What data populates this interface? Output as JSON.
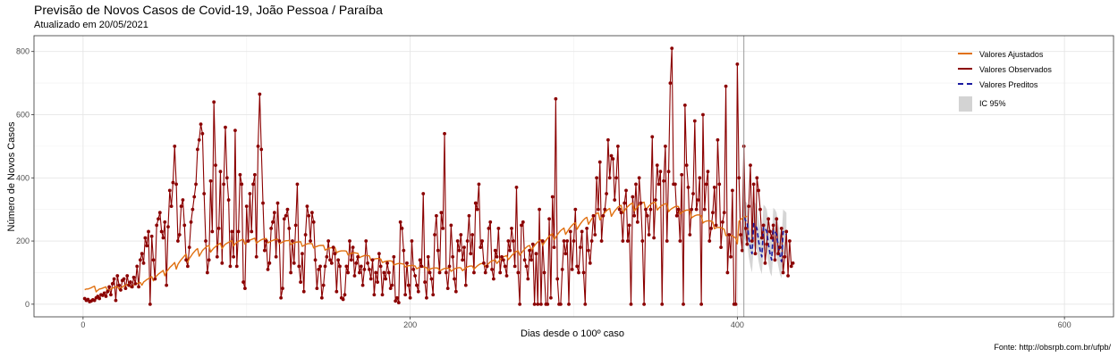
{
  "chart_data": {
    "type": "line",
    "title": "Previsão de Novos Casos de Covid-19, João Pessoa / Paraíba",
    "subtitle": "Atualizado em 20/05/2021",
    "caption": "Fonte: http://obsrpb.com.br/ufpb/",
    "xlabel": "Dias desde o 100º caso",
    "ylabel": "Número de Novos Casos",
    "xlim": [
      -30,
      630
    ],
    "ylim": [
      -40,
      850
    ],
    "x_ticks": [
      0,
      200,
      400,
      600
    ],
    "y_ticks": [
      0,
      200,
      400,
      600,
      800
    ],
    "grid": true,
    "legend_position": "top-right",
    "vline_x": 404,
    "colors": {
      "ajustados": "#e07010",
      "observados": "#8b0000",
      "preditos": "#1a1aa0",
      "ic": "#d3d3d3"
    },
    "legend": [
      "Valores Ajustados",
      "Valores Observados",
      "Valores Preditos",
      "IC 95%"
    ],
    "series": [
      {
        "name": "Valores Observados",
        "x_start": 1,
        "values": [
          18,
          12,
          15,
          8,
          10,
          14,
          12,
          20,
          25,
          18,
          30,
          28,
          35,
          25,
          40,
          55,
          30,
          65,
          80,
          12,
          90,
          60,
          45,
          75,
          80,
          50,
          90,
          60,
          70,
          55,
          85,
          65,
          120,
          55,
          140,
          160,
          130,
          210,
          185,
          230,
          0,
          215,
          140,
          80,
          250,
          270,
          290,
          230,
          210,
          260,
          60,
          245,
          360,
          310,
          385,
          500,
          380,
          200,
          220,
          310,
          330,
          250,
          140,
          120,
          180,
          260,
          300,
          340,
          380,
          490,
          520,
          570,
          540,
          350,
          200,
          100,
          140,
          390,
          230,
          640,
          440,
          150,
          240,
          420,
          130,
          380,
          560,
          400,
          330,
          120,
          230,
          150,
          550,
          120,
          230,
          410,
          380,
          70,
          50,
          310,
          200,
          350,
          230,
          380,
          410,
          150,
          500,
          665,
          490,
          320,
          170,
          200,
          110,
          130,
          240,
          260,
          290,
          150,
          320,
          200,
          20,
          50,
          270,
          280,
          300,
          240,
          100,
          200,
          130,
          250,
          380,
          120,
          70,
          160,
          40,
          220,
          310,
          280,
          200,
          290,
          260,
          140,
          50,
          110,
          120,
          20,
          60,
          120,
          150,
          200,
          140,
          130,
          180,
          160,
          40,
          140,
          120,
          20,
          15,
          30,
          120,
          100,
          200,
          140,
          180,
          90,
          130,
          150,
          100,
          120,
          60,
          110,
          200,
          130,
          110,
          80,
          140,
          30,
          100,
          70,
          160,
          120,
          30,
          100,
          80,
          130,
          100,
          50,
          60,
          150,
          10,
          20,
          5,
          260,
          240,
          170,
          30,
          130,
          60,
          20,
          200,
          110,
          90,
          60,
          40,
          140,
          120,
          350,
          70,
          20,
          150,
          100,
          80,
          30,
          220,
          280,
          170,
          100,
          290,
          240,
          540,
          100,
          50,
          120,
          250,
          150,
          80,
          40,
          200,
          170,
          220,
          140,
          180,
          60,
          200,
          280,
          160,
          220,
          100,
          320,
          300,
          380,
          180,
          200,
          130,
          100,
          120,
          240,
          260,
          110,
          80,
          170,
          150,
          240,
          100,
          150,
          140,
          120,
          90,
          200,
          170,
          240,
          200,
          120,
          370,
          100,
          0,
          250,
          260,
          140,
          120,
          80,
          170,
          140,
          190,
          0,
          160,
          0,
          300,
          0,
          200,
          100,
          0,
          0,
          270,
          20,
          340,
          180,
          650,
          80,
          0,
          0,
          110,
          200,
          160,
          200,
          0,
          230,
          110,
          200,
          300,
          120,
          100,
          180,
          230,
          100,
          0,
          240,
          170,
          130,
          200,
          280,
          220,
          400,
          300,
          450,
          200,
          280,
          300,
          350,
          520,
          400,
          470,
          460,
          330,
          400,
          500,
          300,
          290,
          200,
          320,
          360,
          200,
          250,
          0,
          340,
          280,
          380,
          260,
          400,
          320,
          200,
          0,
          300,
          280,
          220,
          300,
          530,
          210,
          330,
          440,
          380,
          420,
          0,
          390,
          500,
          200,
          420,
          700,
          810,
          380,
          380,
          280,
          300,
          200,
          410,
          0,
          630,
          440,
          370,
          220,
          300,
          350,
          580,
          300,
          330,
          400,
          0,
          600,
          300,
          380,
          420,
          200,
          240,
          290,
          370,
          250,
          520,
          380,
          180,
          260,
          290,
          690,
          100,
          220,
          150,
          360,
          0,
          0,
          760,
          400,
          220,
          170,
          500,
          240,
          190,
          310,
          440,
          200,
          380,
          160,
          400,
          360,
          300,
          210,
          250,
          130,
          190,
          270,
          230,
          210,
          250,
          140,
          270,
          160,
          180,
          240,
          100,
          150,
          230,
          90,
          200,
          120,
          130
        ]
      },
      {
        "name": "Valores Ajustados",
        "x_start": 1,
        "values": [
          46,
          48,
          48,
          50,
          52,
          55,
          57,
          39,
          44,
          48,
          49,
          51,
          53,
          55,
          40,
          44,
          48,
          51,
          53,
          55,
          56,
          47,
          51,
          54,
          58,
          60,
          62,
          64,
          53,
          57,
          61,
          63,
          65,
          67,
          69,
          60,
          70,
          74,
          78,
          81,
          85,
          87,
          74,
          84,
          90,
          95,
          99,
          103,
          107,
          90,
          103,
          109,
          116,
          121,
          126,
          132,
          111,
          126,
          134,
          141,
          147,
          153,
          158,
          133,
          145,
          152,
          160,
          166,
          172,
          176,
          152,
          161,
          170,
          175,
          180,
          184,
          186,
          165,
          172,
          178,
          182,
          187,
          190,
          193,
          176,
          184,
          190,
          193,
          196,
          199,
          201,
          184,
          191,
          196,
          199,
          201,
          204,
          205,
          190,
          195,
          200,
          203,
          205,
          207,
          209,
          193,
          197,
          201,
          204,
          206,
          207,
          208,
          194,
          197,
          200,
          202,
          204,
          205,
          206,
          191,
          194,
          197,
          199,
          201,
          201,
          202,
          189,
          192,
          194,
          196,
          197,
          197,
          198,
          183,
          186,
          189,
          191,
          192,
          192,
          192,
          178,
          181,
          183,
          185,
          186,
          186,
          186,
          171,
          174,
          176,
          178,
          179,
          179,
          179,
          163,
          166,
          168,
          169,
          169,
          169,
          168,
          156,
          159,
          161,
          162,
          163,
          162,
          161,
          147,
          150,
          152,
          154,
          154,
          154,
          153,
          139,
          141,
          143,
          144,
          145,
          144,
          143,
          132,
          134,
          136,
          137,
          137,
          137,
          136,
          124,
          126,
          128,
          129,
          129,
          128,
          127,
          118,
          120,
          122,
          122,
          123,
          122,
          121,
          112,
          115,
          117,
          118,
          118,
          117,
          116,
          107,
          110,
          113,
          114,
          115,
          115,
          114,
          105,
          108,
          111,
          113,
          114,
          114,
          114,
          104,
          108,
          111,
          114,
          115,
          116,
          115,
          106,
          111,
          115,
          118,
          120,
          121,
          121,
          111,
          116,
          121,
          125,
          128,
          129,
          129,
          119,
          124,
          129,
          134,
          137,
          139,
          140,
          129,
          135,
          141,
          146,
          150,
          152,
          154,
          141,
          147,
          154,
          159,
          164,
          167,
          169,
          155,
          162,
          169,
          175,
          180,
          184,
          186,
          170,
          178,
          185,
          192,
          197,
          201,
          204,
          186,
          195,
          202,
          209,
          215,
          220,
          223,
          204,
          212,
          220,
          227,
          233,
          237,
          241,
          221,
          229,
          237,
          244,
          250,
          255,
          258,
          237,
          246,
          254,
          261,
          267,
          272,
          275,
          253,
          262,
          270,
          277,
          283,
          287,
          290,
          267,
          275,
          283,
          290,
          296,
          300,
          303,
          278,
          287,
          295,
          301,
          307,
          311,
          313,
          288,
          296,
          303,
          309,
          314,
          318,
          320,
          295,
          302,
          309,
          314,
          319,
          322,
          323,
          298,
          305,
          311,
          316,
          320,
          322,
          323,
          298,
          304,
          309,
          313,
          316,
          318,
          318,
          293,
          299,
          303,
          306,
          309,
          310,
          309,
          285,
          290,
          294,
          296,
          298,
          298,
          297,
          273,
          277,
          280,
          282,
          283,
          282,
          280,
          257,
          261,
          263,
          264,
          264,
          263,
          260,
          239,
          242,
          243,
          243,
          242,
          240,
          237,
          217,
          219,
          219,
          218,
          216,
          213,
          209,
          191,
          262,
          268,
          272,
          275,
          277,
          278
        ]
      },
      {
        "name": "Valores Preditos",
        "x_start": 404,
        "values": [
          275,
          265,
          260,
          210,
          180,
          160,
          255,
          250,
          240,
          200,
          170,
          150,
          245,
          240,
          230,
          190,
          160,
          140,
          235,
          230,
          220,
          185,
          155,
          135,
          230,
          225,
          220
        ]
      }
    ],
    "ic95": {
      "x_start": 404,
      "lower": [
        210,
        200,
        195,
        150,
        120,
        100,
        185,
        180,
        172,
        135,
        110,
        95,
        175,
        170,
        162,
        128,
        100,
        88,
        165,
        160,
        152,
        122,
        95,
        82,
        160,
        158,
        155
      ],
      "upper": [
        335,
        325,
        320,
        275,
        245,
        225,
        325,
        320,
        310,
        270,
        240,
        220,
        315,
        310,
        300,
        260,
        230,
        210,
        305,
        300,
        290,
        255,
        225,
        205,
        300,
        295,
        290
      ]
    }
  }
}
